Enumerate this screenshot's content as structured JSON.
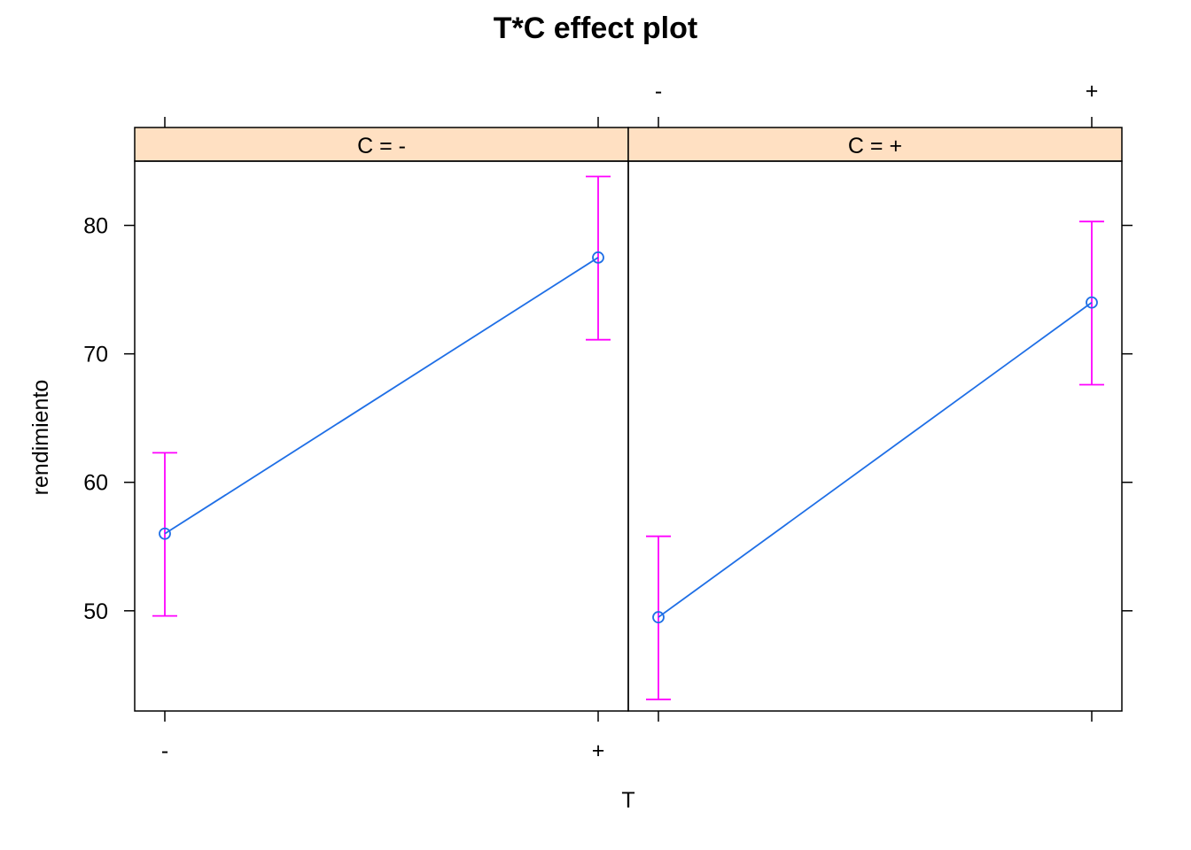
{
  "chart_data": {
    "type": "line",
    "title": "T*C effect plot",
    "xlabel": "T",
    "ylabel": "rendimiento",
    "categories": [
      "-",
      "+"
    ],
    "yticks": [
      50,
      60,
      70,
      80
    ],
    "ylim": [
      42.2,
      85.0
    ],
    "grid": false,
    "colors": {
      "line": "#1f6fe6",
      "errorbar": "#ff00ff",
      "strip": "#ffe0c2",
      "axis": "#000000"
    },
    "panels": [
      {
        "strip_label": "C = -",
        "values": [
          56.0,
          77.5
        ],
        "lower": [
          49.6,
          71.1
        ],
        "upper": [
          62.3,
          83.8
        ]
      },
      {
        "strip_label": "C = +",
        "values": [
          49.5,
          74.0
        ],
        "lower": [
          43.1,
          67.6
        ],
        "upper": [
          55.8,
          80.3
        ]
      }
    ]
  }
}
